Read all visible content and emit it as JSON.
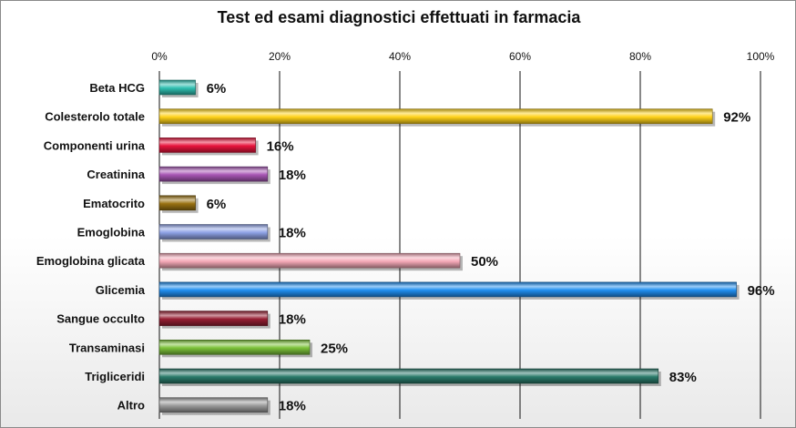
{
  "chart_data": {
    "type": "bar",
    "orientation": "horizontal",
    "title": "Test ed esami diagnostici effettuati in farmacia",
    "categories": [
      "Beta HCG",
      "Colesterolo totale",
      "Componenti urina",
      "Creatinina",
      "Ematocrito",
      "Emoglobina",
      "Emoglobina glicata",
      "Glicemia",
      "Sangue occulto",
      "Transaminasi",
      "Trigliceridi",
      "Altro"
    ],
    "values": [
      6,
      92,
      16,
      18,
      6,
      18,
      50,
      96,
      18,
      25,
      83,
      18
    ],
    "value_labels": [
      "6%",
      "92%",
      "16%",
      "18%",
      "6%",
      "18%",
      "50%",
      "96%",
      "18%",
      "25%",
      "83%",
      "18%"
    ],
    "colors": [
      "#2fbfb0",
      "#ffd21a",
      "#e8143c",
      "#a857b5",
      "#9a7212",
      "#8fa3e6",
      "#f5a9b8",
      "#1f8ef0",
      "#961e32",
      "#7cc23a",
      "#2a7a6a",
      "#9a9a9a"
    ],
    "xlim": [
      0,
      100
    ],
    "x_ticks": [
      0,
      20,
      40,
      60,
      80,
      100
    ],
    "x_tick_labels": [
      "0%",
      "20%",
      "40%",
      "60%",
      "80%",
      "100%"
    ],
    "xaxis_position": "top",
    "grid": true,
    "legend": "none"
  }
}
